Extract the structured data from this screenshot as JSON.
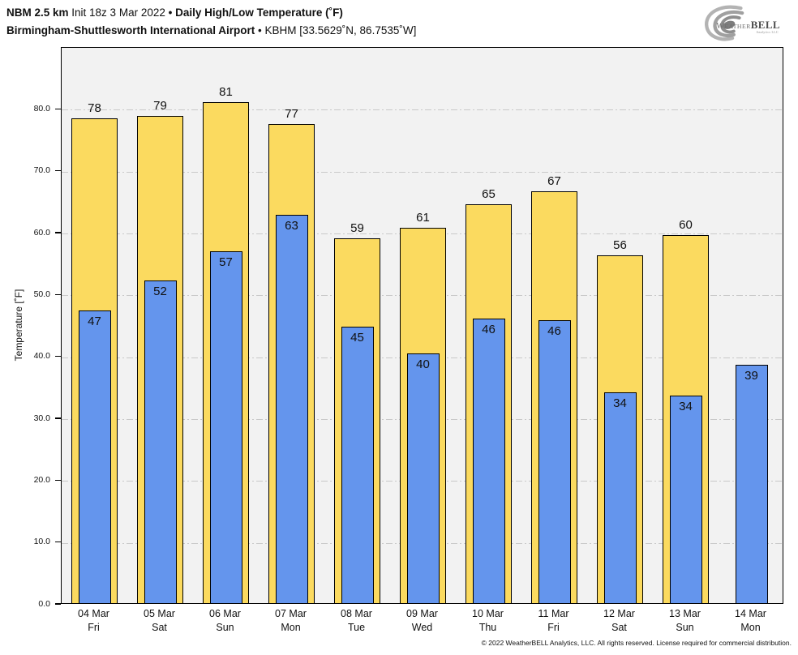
{
  "header": {
    "model": "NBM 2.5 km",
    "init": " Init 18z 3 Mar 2022 ",
    "sep1": "• ",
    "product": "Daily High/Low Temperature (˚F)",
    "station": "Birmingham-Shuttlesworth International Airport",
    "sep2": " • ",
    "station_id": "KBHM [33.5629˚N, 86.7535˚W]"
  },
  "logo": {
    "brand_weather": "Weather",
    "brand_bell": "BELL",
    "brand_sub": "Analytics LLC"
  },
  "colors": {
    "high_fill": "#fbda5f",
    "low_fill": "#6495ed",
    "bar_border": "#000000",
    "plot_bg": "#f2f2f2",
    "gridline": "#c9c9c9",
    "logo_gray": "#9a9a9a"
  },
  "chart_data": {
    "type": "bar",
    "title": "Daily High/Low Temperature (°F)",
    "subtitle": "NBM 2.5 km · Init 18z 3 Mar 2022 · Birmingham-Shuttlesworth International Airport (KBHM)",
    "xlabel": "",
    "ylabel": "Temperature [˚F]",
    "ylim": [
      0,
      90
    ],
    "yticks": [
      0,
      10,
      20,
      30,
      40,
      50,
      60,
      70,
      80
    ],
    "ytick_labels": [
      "0.0",
      "10.0",
      "20.0",
      "30.0",
      "40.0",
      "50.0",
      "60.0",
      "70.0",
      "80.0"
    ],
    "grid": "horizontal dash-dot",
    "legend": false,
    "categories": [
      {
        "date": "04 Mar",
        "dow": "Fri"
      },
      {
        "date": "05 Mar",
        "dow": "Sat"
      },
      {
        "date": "06 Mar",
        "dow": "Sun"
      },
      {
        "date": "07 Mar",
        "dow": "Mon"
      },
      {
        "date": "08 Mar",
        "dow": "Tue"
      },
      {
        "date": "09 Mar",
        "dow": "Wed"
      },
      {
        "date": "10 Mar",
        "dow": "Thu"
      },
      {
        "date": "11 Mar",
        "dow": "Fri"
      },
      {
        "date": "12 Mar",
        "dow": "Sat"
      },
      {
        "date": "13 Mar",
        "dow": "Sun"
      },
      {
        "date": "14 Mar",
        "dow": "Mon"
      }
    ],
    "series": [
      {
        "name": "Daily High",
        "color": "#fbda5f",
        "values": [
          78,
          79,
          81,
          77,
          59,
          61,
          65,
          67,
          56,
          60,
          null
        ],
        "bar_tops": [
          78.4,
          78.7,
          80.9,
          77.4,
          58.9,
          60.6,
          64.5,
          66.5,
          56.2,
          59.5,
          null
        ]
      },
      {
        "name": "Daily Low",
        "color": "#6495ed",
        "values": [
          47,
          52,
          57,
          63,
          45,
          40,
          46,
          46,
          34,
          34,
          39
        ],
        "bar_tops": [
          47.3,
          52.2,
          56.9,
          62.7,
          44.7,
          40.3,
          46.0,
          45.7,
          34.0,
          33.6,
          38.5
        ]
      }
    ]
  },
  "footer": {
    "copyright": "© 2022 WeatherBELL Analytics, LLC. All rights reserved. License required for commercial distribution."
  }
}
